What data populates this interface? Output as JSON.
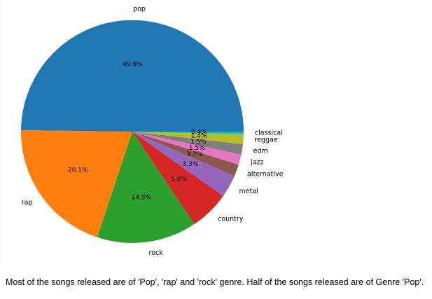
{
  "chart_data": {
    "type": "pie",
    "title": "",
    "start_angle_deg": 0,
    "direction": "counterclockwise",
    "slices": [
      {
        "label": "pop",
        "value": 49.8,
        "pct_label": "49.8%",
        "color": "#1f77b4"
      },
      {
        "label": "rap",
        "value": 20.1,
        "pct_label": "20.1%",
        "color": "#ff7f0e"
      },
      {
        "label": "rock",
        "value": 14.5,
        "pct_label": "14.5%",
        "color": "#2ca02c"
      },
      {
        "label": "country",
        "value": 5.8,
        "pct_label": "5.8%",
        "color": "#d62728"
      },
      {
        "label": "metal",
        "value": 3.3,
        "pct_label": "3.3%",
        "color": "#9467bd"
      },
      {
        "label": "alternative",
        "value": 1.7,
        "pct_label": "1.7%",
        "color": "#8c564b"
      },
      {
        "label": "jazz",
        "value": 1.5,
        "pct_label": "1.5%",
        "color": "#e377c2"
      },
      {
        "label": "edm",
        "value": 1.5,
        "pct_label": "1.5%",
        "color": "#7f7f7f"
      },
      {
        "label": "reggae",
        "value": 1.4,
        "pct_label": "1.4%",
        "color": "#bcbd22"
      },
      {
        "label": "classical",
        "value": 0.4,
        "pct_label": "0.4%",
        "color": "#17becf"
      }
    ]
  },
  "caption": "Most of the songs released are of 'Pop', 'rap' and 'rock' genre. Half of the songs released are of Genre 'Pop'."
}
